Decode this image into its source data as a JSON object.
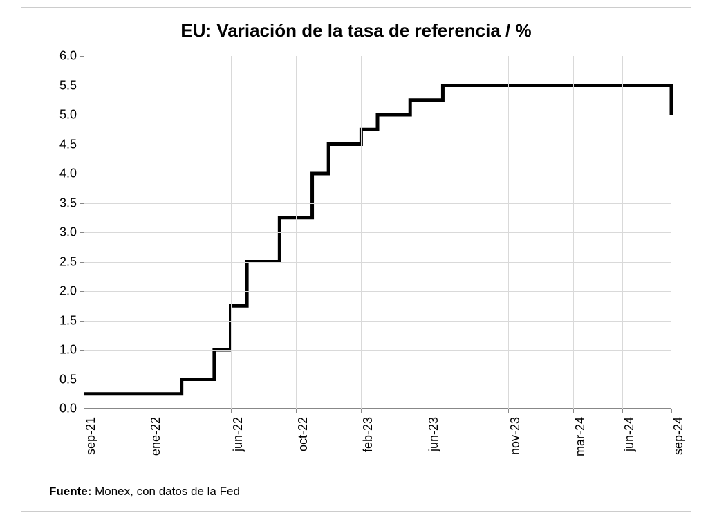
{
  "chart": {
    "type": "step-line",
    "title": "EU: Variación de la tasa de referencia / %",
    "title_fontsize": 26,
    "label_fontsize": 18,
    "background_color": "#ffffff",
    "border_color": "#cccccc",
    "grid_color": "#d9d9d9",
    "axis_color": "#888888",
    "line_color": "#000000",
    "line_width": 5,
    "ylim": [
      0.0,
      6.0
    ],
    "ytick_step": 0.5,
    "y_ticks": [
      "0.0",
      "0.5",
      "1.0",
      "1.5",
      "2.0",
      "2.5",
      "3.0",
      "3.5",
      "4.0",
      "4.5",
      "5.0",
      "5.5",
      "6.0"
    ],
    "x_ticks": [
      {
        "label": "sep-21",
        "idx": 0
      },
      {
        "label": "ene-22",
        "idx": 4
      },
      {
        "label": "jun-22",
        "idx": 9
      },
      {
        "label": "oct-22",
        "idx": 13
      },
      {
        "label": "feb-23",
        "idx": 17
      },
      {
        "label": "jun-23",
        "idx": 21
      },
      {
        "label": "nov-23",
        "idx": 26
      },
      {
        "label": "mar-24",
        "idx": 30
      },
      {
        "label": "jun-24",
        "idx": 33
      },
      {
        "label": "sep-24",
        "idx": 36
      }
    ],
    "x_count": 37,
    "series": [
      {
        "idx": 0,
        "value": 0.25
      },
      {
        "idx": 6,
        "value": 0.25
      },
      {
        "idx": 6,
        "value": 0.5
      },
      {
        "idx": 8,
        "value": 0.5
      },
      {
        "idx": 8,
        "value": 1.0
      },
      {
        "idx": 9,
        "value": 1.0
      },
      {
        "idx": 9,
        "value": 1.75
      },
      {
        "idx": 10,
        "value": 1.75
      },
      {
        "idx": 10,
        "value": 2.5
      },
      {
        "idx": 12,
        "value": 2.5
      },
      {
        "idx": 12,
        "value": 3.25
      },
      {
        "idx": 14,
        "value": 3.25
      },
      {
        "idx": 14,
        "value": 4.0
      },
      {
        "idx": 15,
        "value": 4.0
      },
      {
        "idx": 15,
        "value": 4.5
      },
      {
        "idx": 17,
        "value": 4.5
      },
      {
        "idx": 17,
        "value": 4.75
      },
      {
        "idx": 18,
        "value": 4.75
      },
      {
        "idx": 18,
        "value": 5.0
      },
      {
        "idx": 20,
        "value": 5.0
      },
      {
        "idx": 20,
        "value": 5.25
      },
      {
        "idx": 22,
        "value": 5.25
      },
      {
        "idx": 22,
        "value": 5.5
      },
      {
        "idx": 36,
        "value": 5.5
      },
      {
        "idx": 36,
        "value": 5.0
      }
    ]
  },
  "source": {
    "label": "Fuente:",
    "text": " Monex, con datos de la Fed"
  }
}
